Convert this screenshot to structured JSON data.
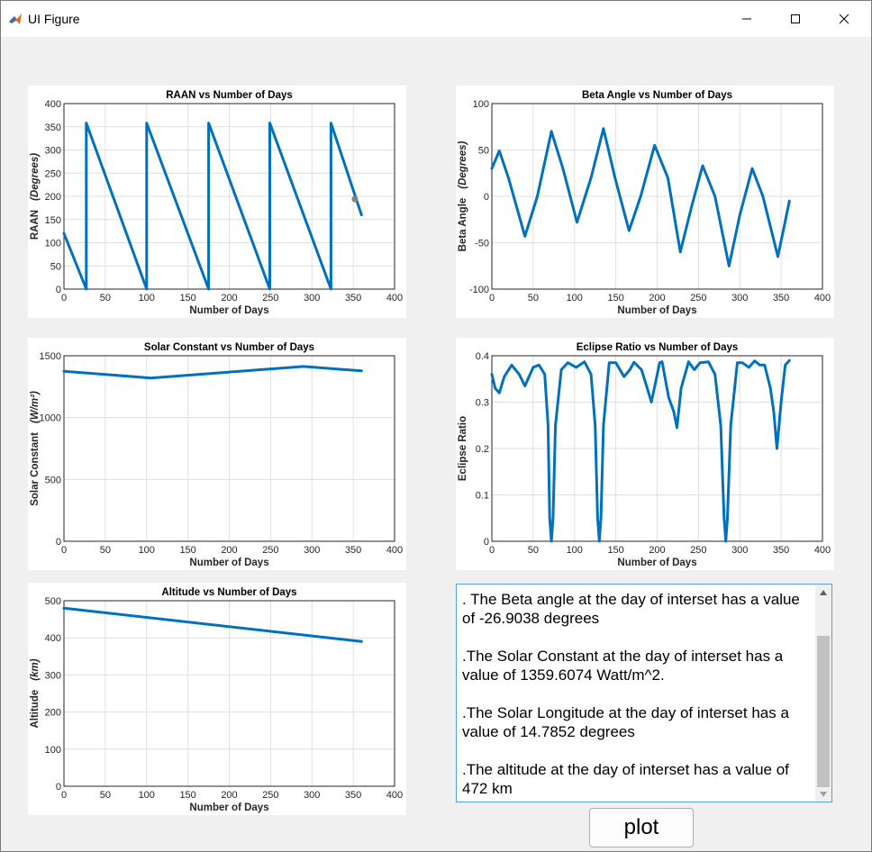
{
  "window": {
    "title": "UI Figure",
    "icon": "matlab-icon",
    "controls": [
      "minimize-icon",
      "maximize-icon",
      "close-icon"
    ]
  },
  "info_text": ". The Beta angle at the day of interset has a value of -26.9038 degrees\n\n.The Solar Constant at the day of interset has a value of 1359.6074 Watt/m^2.\n\n.The Solar Longitude at the day of interset has a value of 14.7852 degrees\n\n.The altitude at the day of interset has a value of 472 km",
  "plot_button": {
    "label": "plot"
  },
  "colors": {
    "line": "#0072BD",
    "marker": "#808080",
    "grid": "#dfdfdf",
    "window_bg": "#f0f0f0"
  },
  "chart_data": [
    {
      "type": "line",
      "title": "RAAN vs Number of Days",
      "xlabel": "Number of Days",
      "ylabel": "RAAN",
      "ylabel_unit": "(Degrees)",
      "xlim": [
        0,
        400
      ],
      "ylim": [
        0,
        400
      ],
      "xticks": [
        "0",
        "50",
        "100",
        "150",
        "200",
        "250",
        "300",
        "350",
        "400"
      ],
      "yticks": [
        "0",
        "50",
        "100",
        "150",
        "200",
        "250",
        "300",
        "350",
        "400"
      ],
      "grid": true,
      "series": [
        {
          "x": [
            0,
            27,
            27,
            100,
            100,
            175,
            175,
            249,
            249,
            323,
            323,
            360
          ],
          "y": [
            120,
            0,
            358,
            0,
            358,
            0,
            358,
            0,
            358,
            0,
            358,
            160
          ]
        }
      ],
      "marker": {
        "x": 352,
        "y": 194
      }
    },
    {
      "type": "line",
      "title": "Beta Angle vs Number of Days",
      "xlabel": "Number of Days",
      "ylabel": "Beta Angle",
      "ylabel_unit": "(Degrees)",
      "xlim": [
        0,
        400
      ],
      "ylim": [
        -100,
        100
      ],
      "xticks": [
        "0",
        "50",
        "100",
        "150",
        "200",
        "250",
        "300",
        "350",
        "400"
      ],
      "yticks": [
        "-100",
        "-50",
        "0",
        "50",
        "100"
      ],
      "grid": true,
      "series": [
        {
          "x": [
            0,
            9,
            20,
            40,
            55,
            72,
            86,
            103,
            120,
            135,
            149,
            166,
            180,
            197,
            213,
            228,
            242,
            255,
            270,
            287,
            300,
            315,
            328,
            346,
            360
          ],
          "y": [
            30,
            49,
            20,
            -43,
            0,
            70,
            30,
            -28,
            20,
            73,
            20,
            -37,
            0,
            55,
            20,
            -60,
            -10,
            33,
            0,
            -75,
            -20,
            30,
            0,
            -65,
            -5
          ]
        }
      ]
    },
    {
      "type": "line",
      "title": "Solar Constant vs Number of Days",
      "xlabel": "Number of Days",
      "ylabel": "Solar  Constant",
      "ylabel_unit": "(W/m²)",
      "xlim": [
        0,
        400
      ],
      "ylim": [
        0,
        1500
      ],
      "xticks": [
        "0",
        "50",
        "100",
        "150",
        "200",
        "250",
        "300",
        "350",
        "400"
      ],
      "yticks": [
        "0",
        "500",
        "1000",
        "1500"
      ],
      "grid": true,
      "series": [
        {
          "x": [
            0,
            105,
            290,
            360
          ],
          "y": [
            1375,
            1320,
            1413,
            1378
          ]
        }
      ]
    },
    {
      "type": "line",
      "title": "Eclipse Ratio vs Number of Days",
      "xlabel": "Number of Days",
      "ylabel": "Eclipse Ratio",
      "xlim": [
        0,
        400
      ],
      "ylim": [
        0,
        0.4
      ],
      "xticks": [
        "0",
        "50",
        "100",
        "150",
        "200",
        "250",
        "300",
        "350",
        "400"
      ],
      "yticks": [
        "0",
        "0.1",
        "0.2",
        "0.3",
        "0.4"
      ],
      "grid": true,
      "series": [
        {
          "x": [
            0,
            4,
            9,
            15,
            24,
            33,
            40,
            50,
            57,
            64,
            68,
            70,
            72,
            74,
            77,
            84,
            92,
            102,
            112,
            120,
            125,
            128,
            130,
            132,
            135,
            142,
            150,
            160,
            167,
            172,
            181,
            188,
            193,
            203,
            206,
            214,
            220,
            224,
            229,
            238,
            245,
            252,
            262,
            270,
            277,
            281,
            283,
            285,
            289,
            297,
            303,
            311,
            318,
            324,
            330,
            337,
            341,
            345,
            350,
            355,
            360
          ],
          "y": [
            0.36,
            0.33,
            0.32,
            0.355,
            0.38,
            0.36,
            0.335,
            0.375,
            0.38,
            0.36,
            0.25,
            0.05,
            0.0,
            0.05,
            0.25,
            0.37,
            0.385,
            0.375,
            0.387,
            0.36,
            0.25,
            0.05,
            0.0,
            0.05,
            0.25,
            0.385,
            0.385,
            0.355,
            0.37,
            0.386,
            0.37,
            0.33,
            0.3,
            0.385,
            0.387,
            0.31,
            0.28,
            0.245,
            0.33,
            0.387,
            0.37,
            0.385,
            0.387,
            0.36,
            0.25,
            0.05,
            0.0,
            0.05,
            0.25,
            0.385,
            0.385,
            0.375,
            0.389,
            0.38,
            0.38,
            0.33,
            0.28,
            0.2,
            0.3,
            0.38,
            0.39
          ]
        }
      ]
    },
    {
      "type": "line",
      "title": "Altitude vs Number of Days",
      "xlabel": "Number of Days",
      "ylabel": "Altitude",
      "ylabel_unit": "(km)",
      "xlim": [
        0,
        400
      ],
      "ylim": [
        0,
        500
      ],
      "xticks": [
        "0",
        "50",
        "100",
        "150",
        "200",
        "250",
        "300",
        "350",
        "400"
      ],
      "yticks": [
        "0",
        "100",
        "200",
        "300",
        "400",
        "500"
      ],
      "grid": true,
      "series": [
        {
          "x": [
            0,
            360
          ],
          "y": [
            480,
            390
          ]
        }
      ]
    }
  ]
}
